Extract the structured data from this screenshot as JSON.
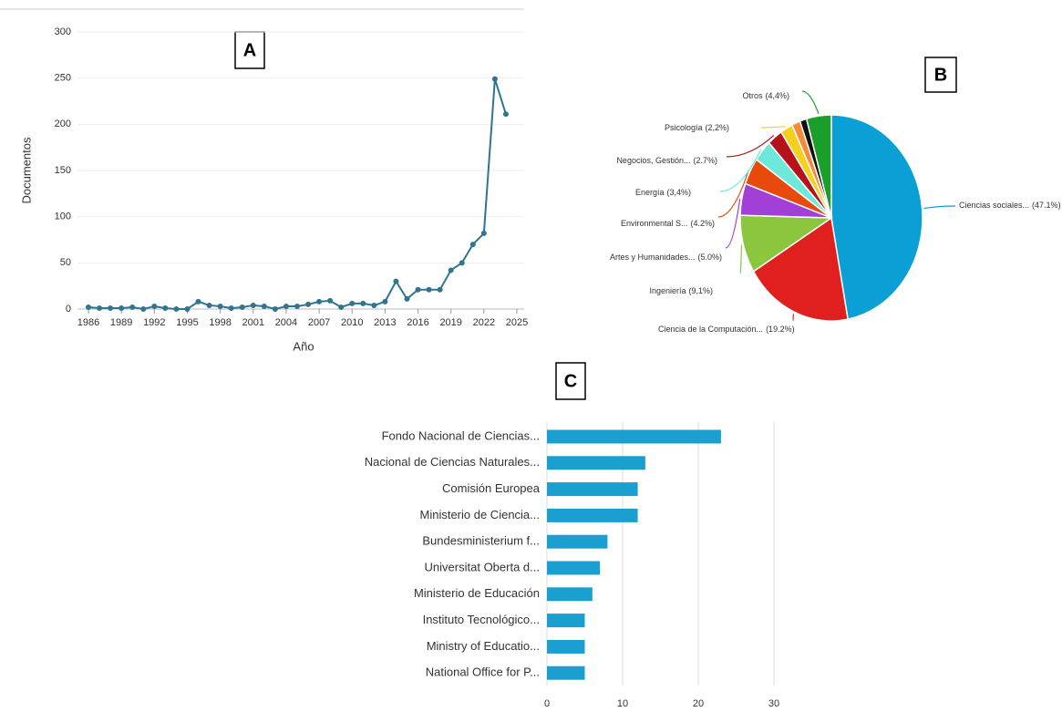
{
  "chart_data": [
    {
      "type": "line",
      "panel": "A",
      "y_label": "Documentos",
      "x_label": "Año",
      "x": [
        1986,
        1987,
        1988,
        1989,
        1990,
        1991,
        1992,
        1993,
        1994,
        1995,
        1996,
        1997,
        1998,
        1999,
        2000,
        2001,
        2002,
        2003,
        2004,
        2005,
        2006,
        2007,
        2008,
        2009,
        2010,
        2011,
        2012,
        2013,
        2014,
        2015,
        2016,
        2017,
        2018,
        2019,
        2020,
        2021,
        2022,
        2023,
        2024
      ],
      "values": [
        2,
        1,
        1,
        1,
        2,
        0,
        3,
        1,
        0,
        0,
        8,
        4,
        3,
        1,
        2,
        4,
        3,
        0,
        3,
        3,
        5,
        8,
        9,
        2,
        6,
        6,
        4,
        8,
        30,
        11,
        21,
        21,
        21,
        42,
        50,
        70,
        82,
        249,
        211
      ],
      "color": "#2f7590",
      "xlim": [
        1986,
        2025
      ],
      "xticks": [
        1986,
        1989,
        1992,
        1995,
        1998,
        2001,
        2004,
        2007,
        2010,
        2013,
        2016,
        2019,
        2022,
        2025
      ],
      "ylim": [
        0,
        300
      ],
      "yticks": [
        0,
        50,
        100,
        150,
        200,
        250,
        300
      ],
      "grid": true
    },
    {
      "type": "pie",
      "panel": "B",
      "categories": [
        "Ciencias sociales...",
        "Ciencia de la Computación...",
        "Ingeniería",
        "Artes y Humanidades...",
        "Environmental S...",
        "Energía",
        "Negocios, Gestión...",
        "Psicología",
        null,
        null,
        "Otros"
      ],
      "values": [
        47.1,
        19.2,
        9.1,
        5.0,
        4.2,
        3.4,
        2.7,
        2.2,
        1.5,
        1.2,
        4.4
      ],
      "value_labels": [
        "(47.1%)",
        "(19.2%)",
        "(9,1%)",
        "(5.0%)",
        "(4.2%)",
        "(3,4%)",
        "(2.7%)",
        "(2,2%)",
        null,
        null,
        "(4,4%)"
      ],
      "colors": [
        "#0aa0d6",
        "#e0201f",
        "#8cc63f",
        "#a23fd6",
        "#e84a0c",
        "#6fe8dc",
        "#b5121b",
        "#f5d020",
        "#f58a3a",
        "#111111",
        "#1a9f2a"
      ]
    },
    {
      "type": "hbar",
      "panel": "C",
      "categories": [
        "Fondo Nacional de Ciencias...",
        "Nacional de Ciencias Naturales...",
        "Comisión Europea",
        "Ministerio de Ciencia...",
        "Bundesministerium f...",
        "Universitat Oberta d...",
        "Ministerio de Educación",
        "Instituto Tecnológico...",
        "Ministry of Educatio...",
        "National Office for P..."
      ],
      "values": [
        23,
        13,
        12,
        12,
        8,
        7,
        6,
        5,
        5,
        5
      ],
      "color": "#1a9fd0",
      "xlim": [
        0,
        30
      ],
      "xticks": [
        0,
        10,
        20,
        30
      ],
      "grid": true
    }
  ]
}
